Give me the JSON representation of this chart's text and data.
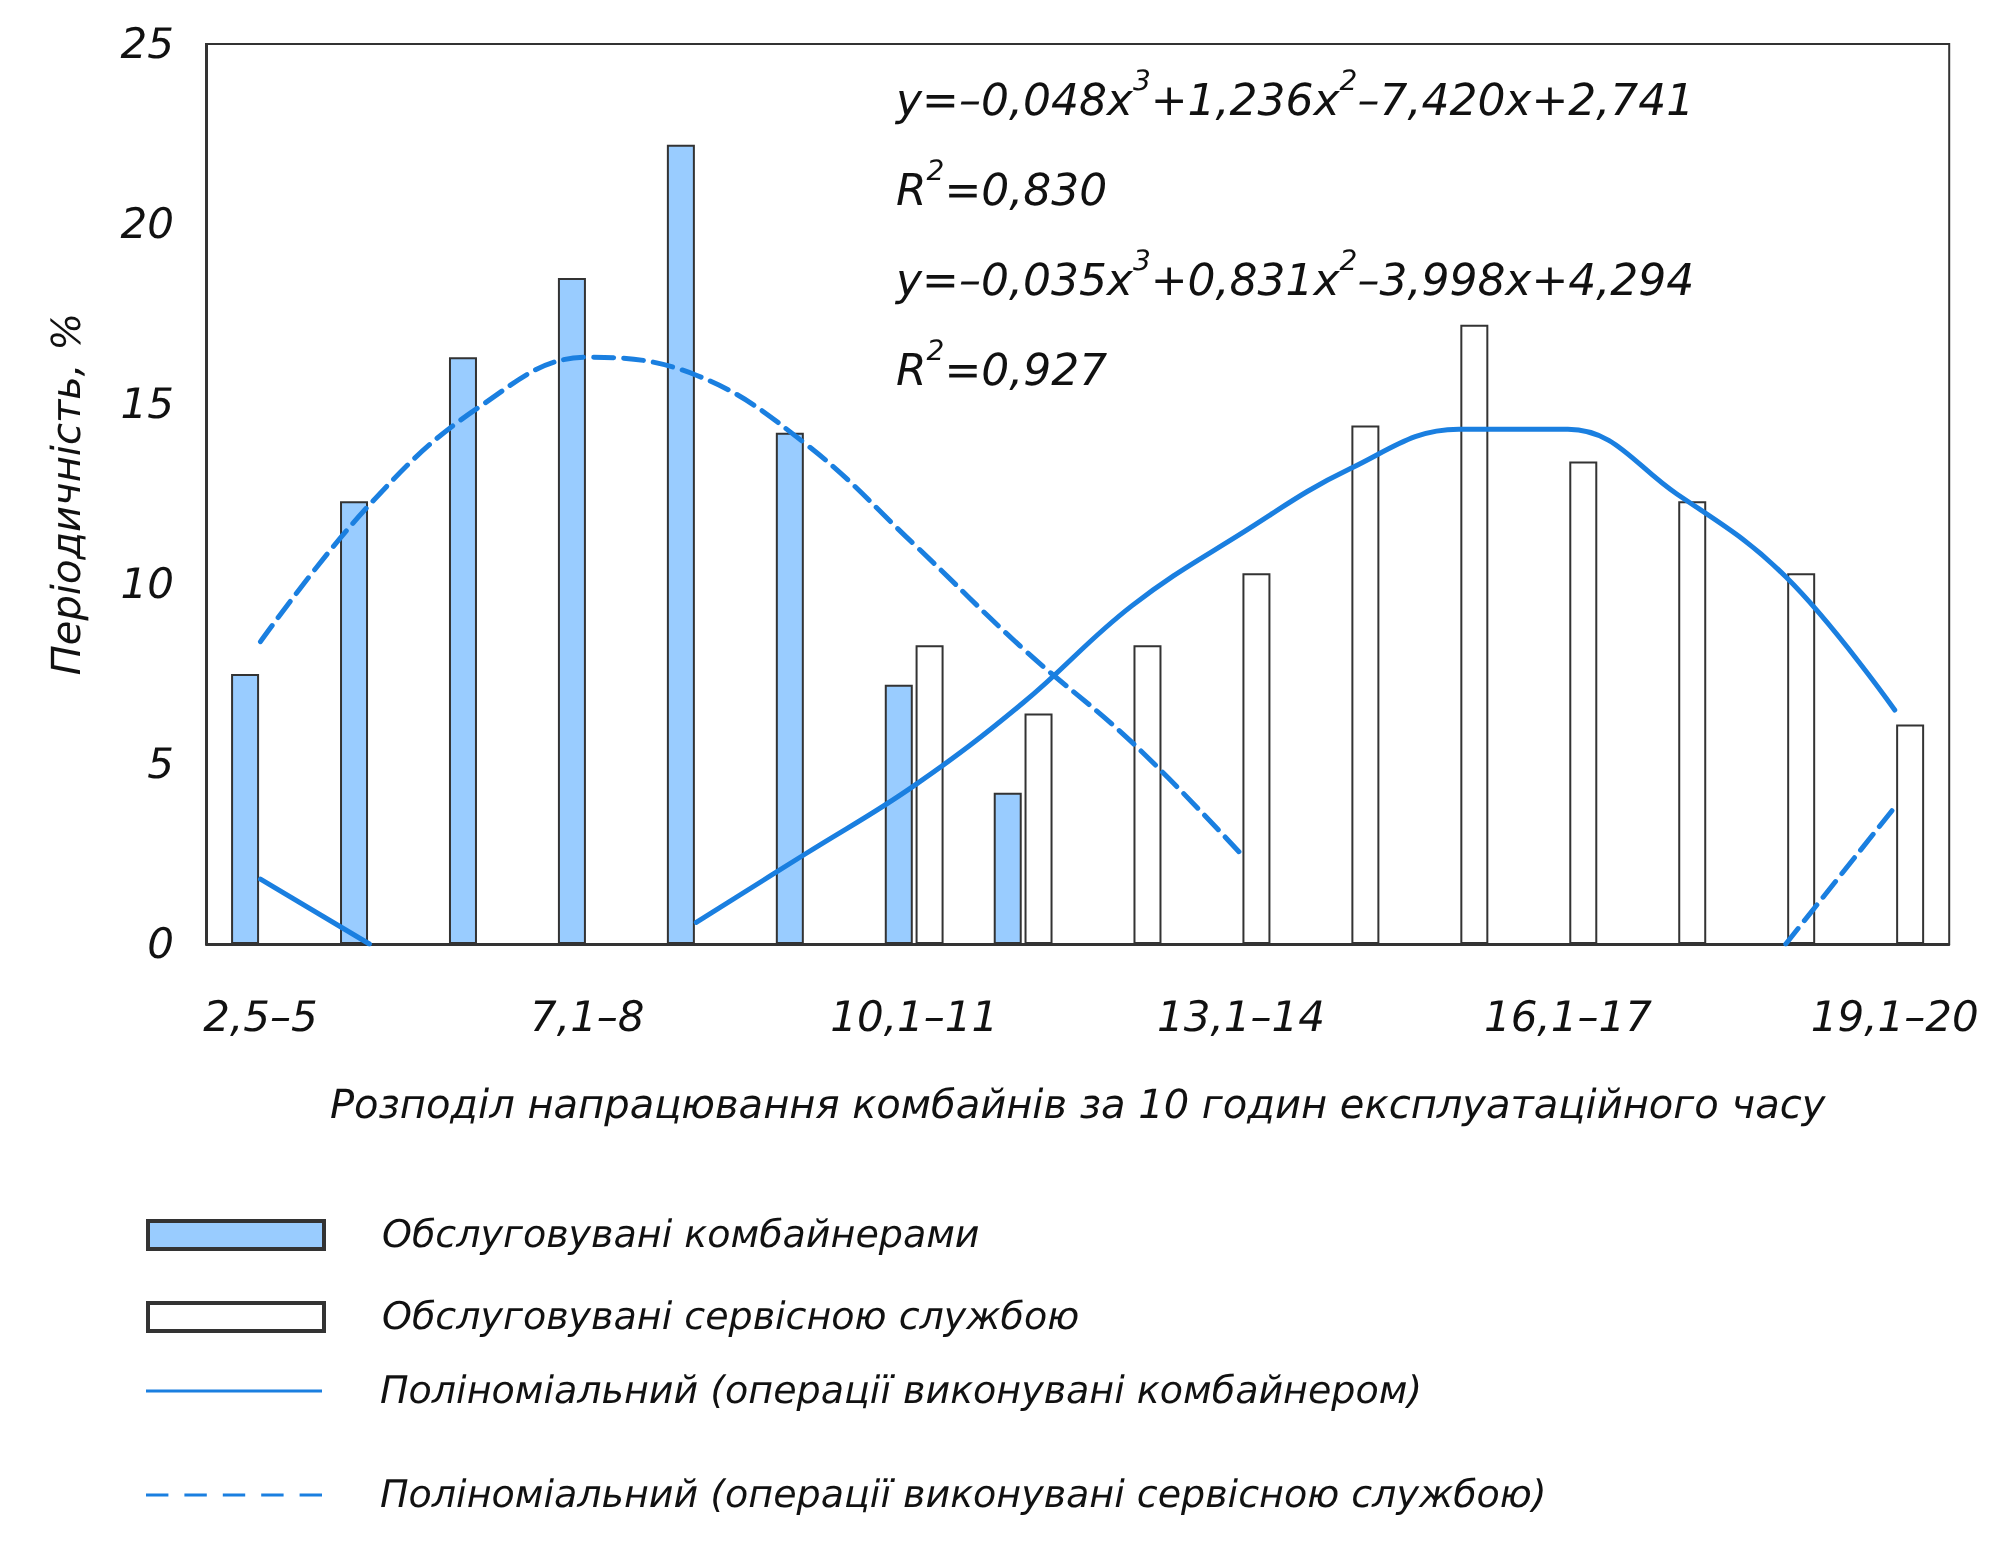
{
  "chart_data": {
    "type": "bar",
    "ylabel": "Періодичність, %",
    "xlabel": "Розподіл напрацювання комбайнів за 10 годин експлуатаційного часу",
    "categories": [
      "2,5–5",
      null,
      null,
      "7,1–8",
      null,
      null,
      "10,1–11",
      null,
      null,
      "13,1–14",
      null,
      null,
      "16,1–17",
      null,
      null,
      "19,1–20"
    ],
    "series": [
      {
        "name": "Обслуговувані комбайнерами",
        "type": "bar",
        "color": "#99ccff",
        "values": [
          7.5,
          12.3,
          16.3,
          18.5,
          22.2,
          14.2,
          7.2,
          4.2,
          null,
          null,
          null,
          null,
          null,
          null,
          null,
          null
        ]
      },
      {
        "name": "Обслуговувані сервісною службою",
        "type": "bar",
        "color": "#ffffff",
        "values": [
          null,
          null,
          null,
          null,
          null,
          null,
          8.3,
          6.4,
          8.3,
          10.3,
          14.4,
          17.2,
          13.4,
          12.3,
          10.3,
          6.1
        ]
      },
      {
        "name": "Поліноміальний (операції виконувані комбайнером)",
        "type": "line",
        "line_style": "solid",
        "color": "#1a7fe0",
        "values": [
          1.8,
          0,
          null,
          null,
          0.6,
          2.5,
          4.4,
          6.7,
          9.4,
          11.4,
          13.2,
          14.3,
          14.3,
          12.5,
          10.2,
          6.5
        ]
      },
      {
        "name": "Поліноміальний (операції виконувані сервісною службою)",
        "type": "line",
        "line_style": "dashed",
        "color": "#1a7fe0",
        "values": [
          8.4,
          12.2,
          14.9,
          16.3,
          15.8,
          13.9,
          11.1,
          8.2,
          5.6,
          2.5,
          null,
          null,
          null,
          null,
          0,
          3.8
        ]
      }
    ],
    "annotations": [
      "y=–0,048x$^{3}$+1,236x$^{2}$–7,420x+2,741",
      "R$^{2}$=0,830",
      "y=–0,035x$^{3}$+0,831x$^{2}$–3,998x+4,294",
      "R$^{2}$=0,927"
    ],
    "ylim": [
      0,
      25
    ],
    "yticks": [
      0,
      5,
      10,
      15,
      20,
      25
    ],
    "grid": false,
    "legend": "bottom",
    "marker": "none"
  }
}
